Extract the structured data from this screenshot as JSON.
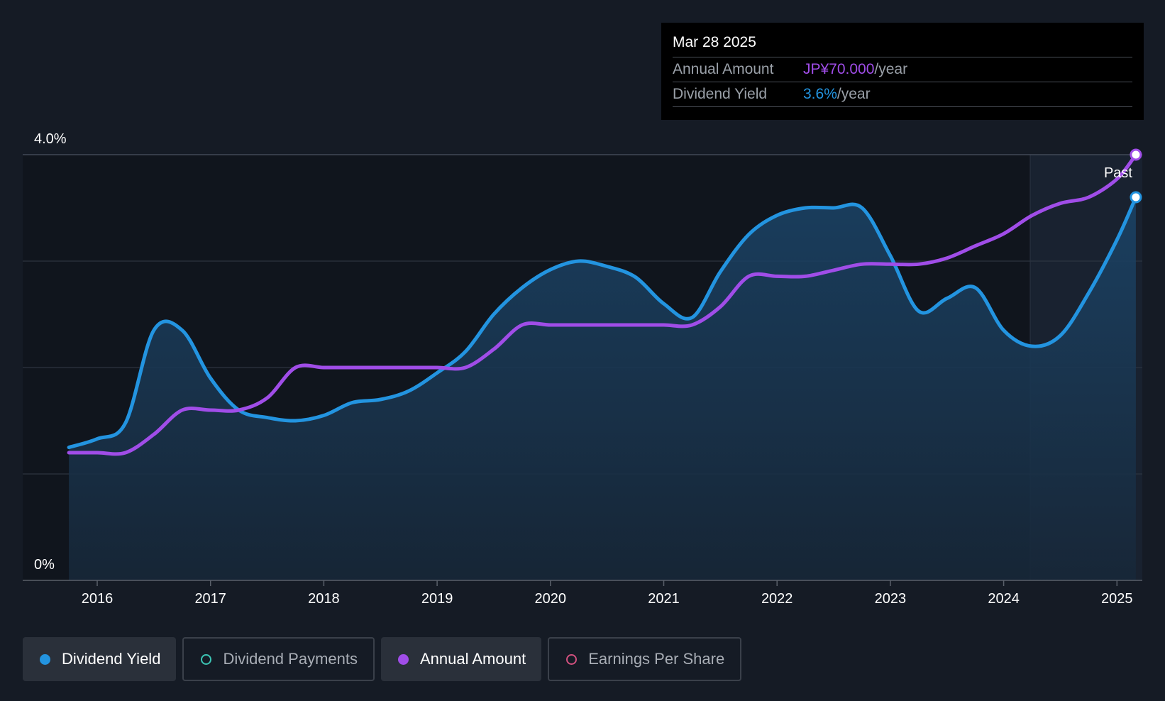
{
  "chart_data": {
    "type": "line",
    "x_ticks": [
      "2016",
      "2017",
      "2018",
      "2019",
      "2020",
      "2021",
      "2022",
      "2023",
      "2024",
      "2025"
    ],
    "y_ticks": [
      "0%",
      "4.0%"
    ],
    "ylim": [
      0,
      4.0
    ],
    "grid": true,
    "forecast_label": "Past",
    "series": [
      {
        "name": "Dividend Yield",
        "color": "#2394e0",
        "unit": "%",
        "points": [
          [
            "2015-10",
            1.25
          ],
          [
            "2016-01",
            1.33
          ],
          [
            "2016-04",
            1.48
          ],
          [
            "2016-07",
            2.35
          ],
          [
            "2016-10",
            2.35
          ],
          [
            "2017-01",
            1.9
          ],
          [
            "2017-04",
            1.6
          ],
          [
            "2017-07",
            1.53
          ],
          [
            "2017-10",
            1.5
          ],
          [
            "2018-01",
            1.55
          ],
          [
            "2018-04",
            1.67
          ],
          [
            "2018-07",
            1.7
          ],
          [
            "2018-10",
            1.78
          ],
          [
            "2019-01",
            1.95
          ],
          [
            "2019-04",
            2.15
          ],
          [
            "2019-07",
            2.5
          ],
          [
            "2019-10",
            2.75
          ],
          [
            "2020-01",
            2.92
          ],
          [
            "2020-04",
            3.0
          ],
          [
            "2020-07",
            2.95
          ],
          [
            "2020-10",
            2.85
          ],
          [
            "2021-01",
            2.6
          ],
          [
            "2021-04",
            2.47
          ],
          [
            "2021-07",
            2.9
          ],
          [
            "2021-10",
            3.25
          ],
          [
            "2022-01",
            3.43
          ],
          [
            "2022-04",
            3.5
          ],
          [
            "2022-07",
            3.5
          ],
          [
            "2022-10",
            3.5
          ],
          [
            "2023-01",
            3.05
          ],
          [
            "2023-04",
            2.53
          ],
          [
            "2023-07",
            2.65
          ],
          [
            "2023-10",
            2.75
          ],
          [
            "2024-01",
            2.35
          ],
          [
            "2024-04",
            2.2
          ],
          [
            "2024-07",
            2.3
          ],
          [
            "2024-10",
            2.7
          ],
          [
            "2025-01",
            3.2
          ],
          [
            "2025-03",
            3.6
          ]
        ]
      },
      {
        "name": "Annual Amount",
        "color": "#a04de8",
        "unit": "JP¥",
        "points": [
          [
            "2015-10",
            21.0
          ],
          [
            "2016-01",
            21.0
          ],
          [
            "2016-04",
            21.0
          ],
          [
            "2016-07",
            24.0
          ],
          [
            "2016-10",
            28.0
          ],
          [
            "2017-01",
            28.0
          ],
          [
            "2017-04",
            28.0
          ],
          [
            "2017-07",
            30.0
          ],
          [
            "2017-10",
            35.0
          ],
          [
            "2018-01",
            35.0
          ],
          [
            "2018-04",
            35.0
          ],
          [
            "2018-07",
            35.0
          ],
          [
            "2018-10",
            35.0
          ],
          [
            "2019-01",
            35.0
          ],
          [
            "2019-04",
            35.0
          ],
          [
            "2019-07",
            38.0
          ],
          [
            "2019-10",
            42.0
          ],
          [
            "2020-01",
            42.0
          ],
          [
            "2020-04",
            42.0
          ],
          [
            "2020-07",
            42.0
          ],
          [
            "2020-10",
            42.0
          ],
          [
            "2021-01",
            42.0
          ],
          [
            "2021-04",
            42.0
          ],
          [
            "2021-07",
            45.0
          ],
          [
            "2021-10",
            50.0
          ],
          [
            "2022-01",
            50.0
          ],
          [
            "2022-04",
            50.0
          ],
          [
            "2022-07",
            51.0
          ],
          [
            "2022-10",
            52.0
          ],
          [
            "2023-01",
            52.0
          ],
          [
            "2023-04",
            52.0
          ],
          [
            "2023-07",
            53.0
          ],
          [
            "2023-10",
            55.0
          ],
          [
            "2024-01",
            57.0
          ],
          [
            "2024-04",
            60.0
          ],
          [
            "2024-07",
            62.0
          ],
          [
            "2024-10",
            63.0
          ],
          [
            "2025-01",
            66.0
          ],
          [
            "2025-03",
            70.0
          ]
        ]
      }
    ]
  },
  "tooltip": {
    "date": "Mar 28 2025",
    "rows": [
      {
        "label": "Annual Amount",
        "value": "JP¥70.000",
        "unit": "/year",
        "color": "#a04de8"
      },
      {
        "label": "Dividend Yield",
        "value": "3.6%",
        "unit": "/year",
        "color": "#2394e0"
      }
    ]
  },
  "legend": [
    {
      "label": "Dividend Yield",
      "color": "#2394e0",
      "active": true,
      "icon": "filled-dot"
    },
    {
      "label": "Dividend Payments",
      "color": "#3cc5b5",
      "active": false,
      "icon": "hollow-dot"
    },
    {
      "label": "Annual Amount",
      "color": "#a04de8",
      "active": true,
      "icon": "filled-dot"
    },
    {
      "label": "Earnings Per Share",
      "color": "#d0507e",
      "active": false,
      "icon": "hollow-dot"
    }
  ],
  "colors": {
    "background": "#151b25",
    "plot_past": "#10151d",
    "area_fill": "#1b3c5c"
  }
}
